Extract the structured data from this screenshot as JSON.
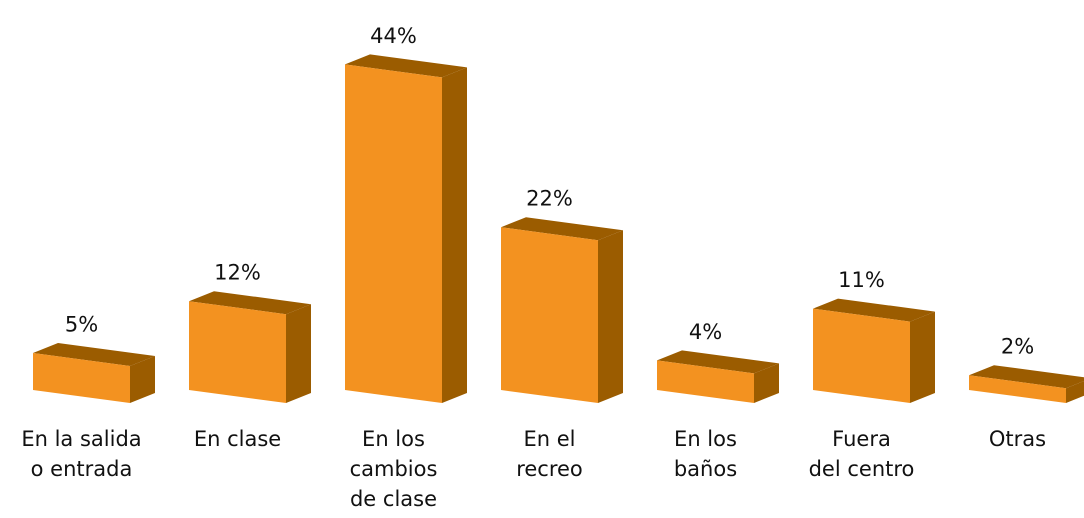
{
  "chart_data": {
    "type": "bar3d",
    "categories": [
      [
        "En la salida",
        "o entrada"
      ],
      [
        "En clase"
      ],
      [
        "En los",
        "cambios",
        "de clase"
      ],
      [
        "En el",
        "recreo"
      ],
      [
        "En los",
        "baños"
      ],
      [
        "Fuera",
        "del centro"
      ],
      [
        "Otras"
      ]
    ],
    "values": [
      5,
      12,
      44,
      22,
      4,
      11,
      2
    ],
    "value_labels": [
      "5%",
      "12%",
      "44%",
      "22%",
      "4%",
      "11%",
      "2%"
    ],
    "color": "#f39220",
    "side_color": "#9b5c00"
  }
}
